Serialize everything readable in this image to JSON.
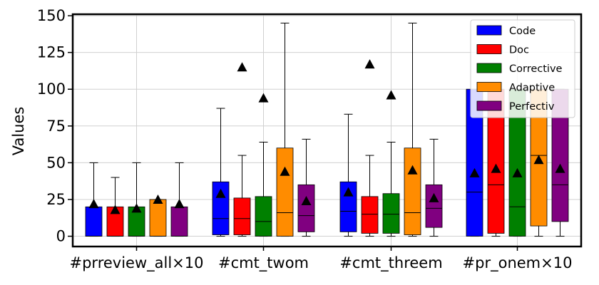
{
  "chart_data": {
    "type": "box",
    "title": "",
    "xlabel": "",
    "ylabel": "Values",
    "ylim": [
      -7,
      151
    ],
    "yticks": [
      0,
      25,
      50,
      75,
      100,
      125,
      150
    ],
    "grid": true,
    "legend_position": "top-right",
    "categories": [
      "#prreview_all×10",
      "#cmt_twom",
      "#cmt_threem",
      "#pr_onem×10"
    ],
    "series": [
      {
        "name": "Code",
        "color": "#0000ff",
        "boxes": [
          {
            "whislo": 0,
            "q1": 0,
            "med": 0,
            "q3": 20,
            "whishi": 50,
            "mean": 22
          },
          {
            "whislo": 0,
            "q1": 1,
            "med": 12,
            "q3": 37,
            "whishi": 87,
            "mean": 29
          },
          {
            "whislo": 0,
            "q1": 3,
            "med": 17,
            "q3": 37,
            "whishi": 83,
            "mean": 30
          },
          {
            "whislo": 0,
            "q1": 0,
            "med": 30,
            "q3": 100,
            "whishi": 100,
            "mean": 43
          }
        ]
      },
      {
        "name": "Doc",
        "color": "#ff0000",
        "boxes": [
          {
            "whislo": 0,
            "q1": 0,
            "med": 0,
            "q3": 20,
            "whishi": 40,
            "mean": 18
          },
          {
            "whislo": 0,
            "q1": 1,
            "med": 12,
            "q3": 26,
            "whishi": 55,
            "mean": 115
          },
          {
            "whislo": 0,
            "q1": 2,
            "med": 15,
            "q3": 27,
            "whishi": 55,
            "mean": 117
          },
          {
            "whislo": 0,
            "q1": 2,
            "med": 35,
            "q3": 100,
            "whishi": 100,
            "mean": 46
          }
        ]
      },
      {
        "name": "Corrective",
        "color": "#008000",
        "boxes": [
          {
            "whislo": 0,
            "q1": 0,
            "med": 0,
            "q3": 20,
            "whishi": 50,
            "mean": 19
          },
          {
            "whislo": 0,
            "q1": 0,
            "med": 10,
            "q3": 27,
            "whishi": 64,
            "mean": 94
          },
          {
            "whislo": 0,
            "q1": 2,
            "med": 15,
            "q3": 29,
            "whishi": 64,
            "mean": 96
          },
          {
            "whislo": 0,
            "q1": 0,
            "med": 20,
            "q3": 100,
            "whishi": 100,
            "mean": 43
          }
        ]
      },
      {
        "name": "Adaptive",
        "color": "#ff8c00",
        "boxes": [
          {
            "whislo": 0,
            "q1": 0,
            "med": 0,
            "q3": 25,
            "whishi": 25,
            "mean": 25
          },
          {
            "whislo": 0,
            "q1": 0,
            "med": 16,
            "q3": 60,
            "whishi": 145,
            "mean": 44
          },
          {
            "whislo": 0,
            "q1": 1,
            "med": 16,
            "q3": 60,
            "whishi": 145,
            "mean": 45
          },
          {
            "whislo": 0,
            "q1": 7,
            "med": 55,
            "q3": 100,
            "whishi": 100,
            "mean": 52
          }
        ]
      },
      {
        "name": "Perfectiv",
        "color": "#800080",
        "boxes": [
          {
            "whislo": 0,
            "q1": 0,
            "med": 0,
            "q3": 20,
            "whishi": 50,
            "mean": 22
          },
          {
            "whislo": 0,
            "q1": 3,
            "med": 14,
            "q3": 35,
            "whishi": 66,
            "mean": 24
          },
          {
            "whislo": 0,
            "q1": 6,
            "med": 19,
            "q3": 35,
            "whishi": 66,
            "mean": 26
          },
          {
            "whislo": 0,
            "q1": 10,
            "med": 35,
            "q3": 100,
            "whishi": 100,
            "mean": 46
          }
        ]
      }
    ]
  }
}
